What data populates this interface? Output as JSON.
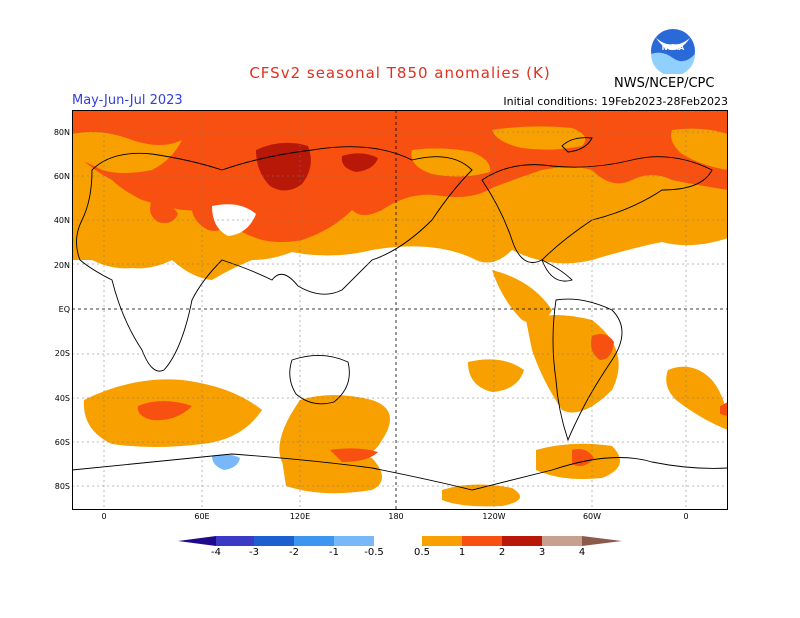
{
  "title": "CFSv2 seasonal T850 anomalies (K)",
  "season": "May-Jun-Jul 2023",
  "initial_conditions": "Initial conditions: 19Feb2023-28Feb2023",
  "agency": "NWS/NCEP/CPC",
  "logo_text": "NOAA",
  "map": {
    "lat_labels": [
      "80N",
      "60N",
      "40N",
      "20N",
      "EQ",
      "20S",
      "40S",
      "60S",
      "80S"
    ],
    "lon_labels": [
      "0",
      "60E",
      "120E",
      "180",
      "120W",
      "60W",
      "0"
    ]
  },
  "colorbar": {
    "ticks": [
      "-4",
      "-3",
      "-2",
      "-1",
      "-0.5",
      "0.5",
      "1",
      "2",
      "3",
      "4"
    ],
    "colors": {
      "lt_-4": "#1e0a8c",
      "-4_-3": "#3a3ac4",
      "-3_-2": "#1e5fd0",
      "-2_-1": "#3c96f0",
      "-1_-0.5": "#78b8f8",
      "-0.5_0.5": "#ffffff",
      "0.5_1": "#f8a000",
      "1_2": "#f85010",
      "2_3": "#b81808",
      "3_4": "#c8a090",
      "gt_4": "#8c5a4a"
    }
  }
}
